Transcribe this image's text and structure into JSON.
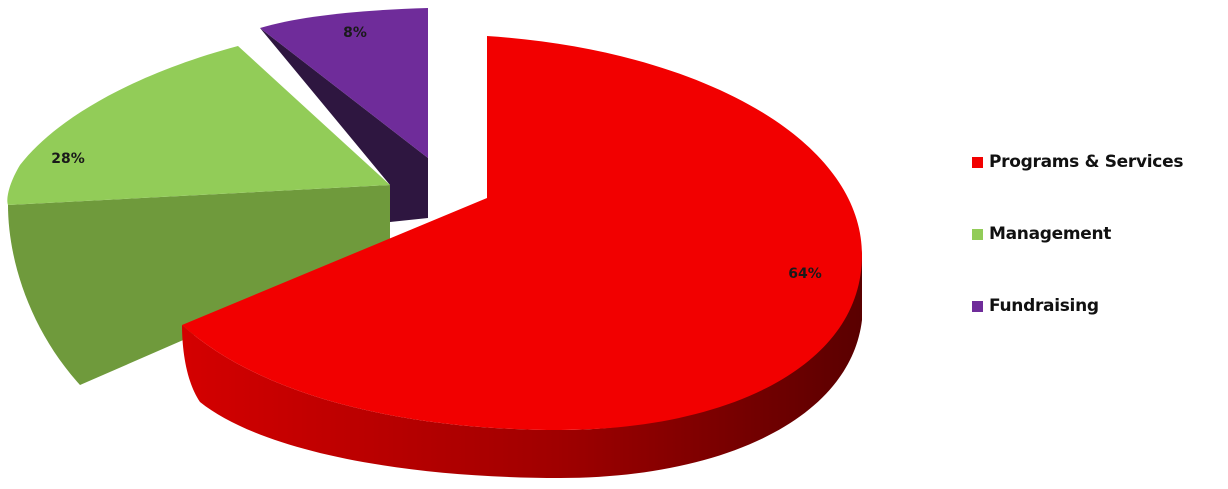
{
  "chart_data": {
    "type": "pie",
    "title": "",
    "style": "3d-exploded",
    "categories": [
      "Programs & Services",
      "Management",
      "Fundraising"
    ],
    "values": [
      64,
      28,
      8
    ],
    "data_labels": [
      "64%",
      "28%",
      "8%"
    ],
    "colors": [
      "#f20000",
      "#92cc58",
      "#6f2c9a"
    ],
    "side_colors": [
      "#a80000",
      "#6f9a3c",
      "#2e1640"
    ],
    "legend_placement": "right"
  }
}
